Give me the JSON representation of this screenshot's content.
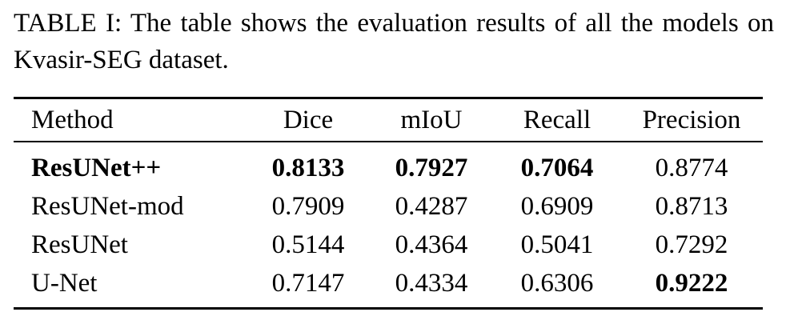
{
  "caption": "TABLE I: The table shows the evaluation results of all the models on Kvasir-SEG dataset.",
  "table": {
    "headers": [
      "Method",
      "Dice",
      "mIoU",
      "Recall",
      "Precision"
    ],
    "rows": [
      {
        "method": "ResUNet++",
        "dice": "0.8133",
        "miou": "0.7927",
        "recall": "0.7064",
        "precision": "0.8774"
      },
      {
        "method": "ResUNet-mod",
        "dice": "0.7909",
        "miou": "0.4287",
        "recall": "0.6909",
        "precision": "0.8713"
      },
      {
        "method": "ResUNet",
        "dice": "0.5144",
        "miou": "0.4364",
        "recall": "0.5041",
        "precision": "0.7292"
      },
      {
        "method": "U-Net",
        "dice": "0.7147",
        "miou": "0.4334",
        "recall": "0.6306",
        "precision": "0.9222"
      }
    ],
    "bold_cells": [
      "ResUNet++ method",
      "ResUNet++ dice",
      "ResUNet++ miou",
      "ResUNet++ recall",
      "U-Net precision"
    ]
  }
}
